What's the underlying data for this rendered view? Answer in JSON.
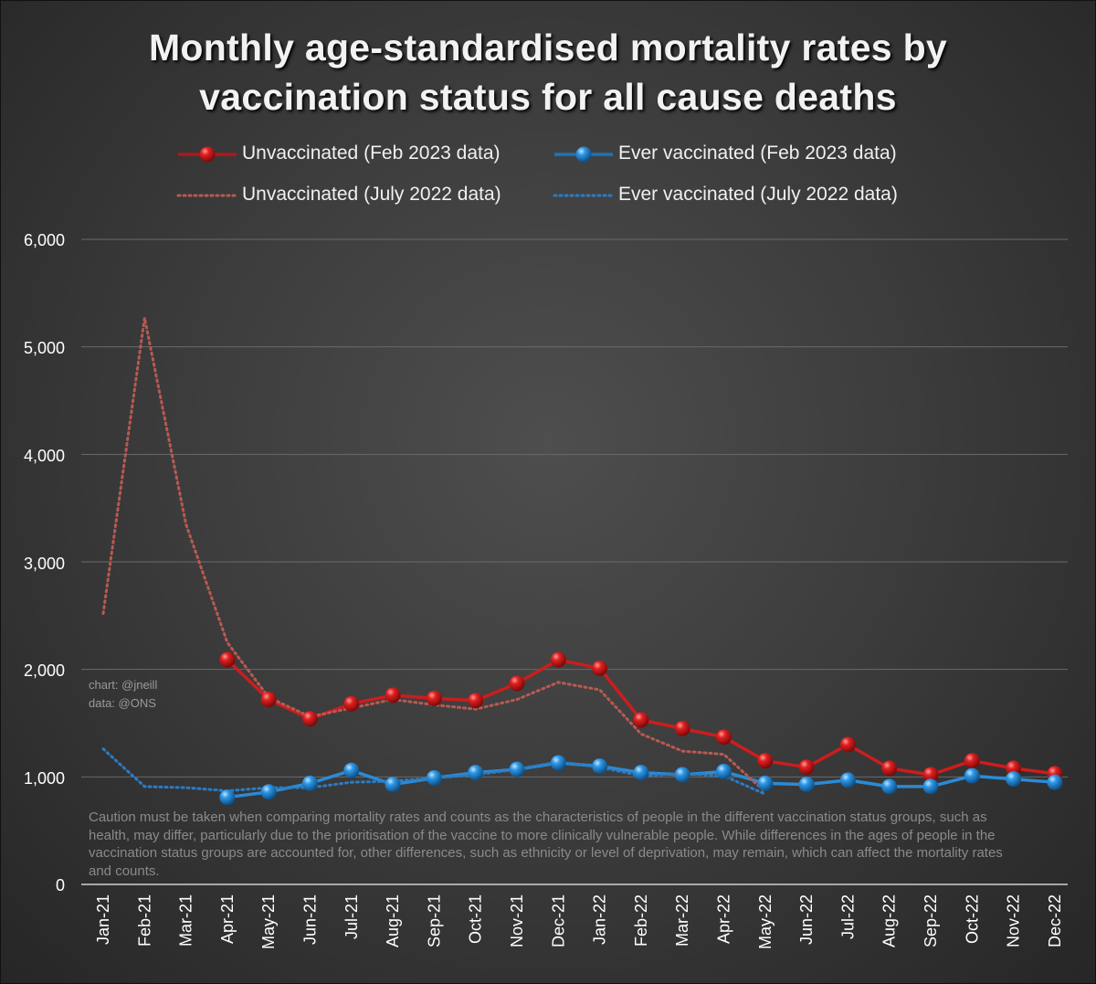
{
  "colors": {
    "unvaccinated": "#cc1d1d",
    "unvaccinated_old": "#b85a52",
    "vaccinated": "#2a8bd6",
    "vaccinated_old": "#2b7cc4",
    "grid": "#6a6a6a"
  },
  "legend": {
    "unvax_new": "Unvaccinated (Feb 2023 data)",
    "vax_new": "Ever vaccinated (Feb 2023 data)",
    "unvax_old": "Unvaccinated (July 2022 data)",
    "vax_old": "Ever vaccinated (July 2022 data)"
  },
  "credit": {
    "chart": "chart: @jneill",
    "data": "data: @ONS"
  },
  "caution": "Caution must be taken when comparing mortality rates and counts as the characteristics of people in the different vaccination status groups, such as health, may differ, particularly due to the prioritisation of the vaccine to more clinically vulnerable people. While differences in the ages of people in the vaccination status groups are accounted for, other differences, such as ethnicity or level of deprivation, may remain, which can affect the mortality rates and counts.",
  "chart_data": {
    "type": "line",
    "title": [
      "Monthly age-standardised mortality rates by",
      "vaccination status for all cause deaths"
    ],
    "categories": [
      "Jan-21",
      "Feb-21",
      "Mar-21",
      "Apr-21",
      "May-21",
      "Jun-21",
      "Jul-21",
      "Aug-21",
      "Sep-21",
      "Oct-21",
      "Nov-21",
      "Dec-21",
      "Jan-22",
      "Feb-22",
      "Mar-22",
      "Apr-22",
      "May-22",
      "Jun-22",
      "Jul-22",
      "Aug-22",
      "Sep-22",
      "Oct-22",
      "Nov-22",
      "Dec-22"
    ],
    "y_ticks": [
      "0",
      "1,000",
      "2,000",
      "3,000",
      "4,000",
      "5,000",
      "6,000"
    ],
    "ylim": [
      0,
      6000
    ],
    "grid": true,
    "legend_position": "top",
    "series": [
      {
        "name": "Unvaccinated (Feb 2023 data)",
        "style": "solid-marker",
        "color_key": "unvaccinated",
        "values": [
          null,
          null,
          null,
          2090,
          1720,
          1540,
          1680,
          1760,
          1730,
          1710,
          1870,
          2090,
          2010,
          1530,
          1450,
          1370,
          1150,
          1090,
          1300,
          1080,
          1020,
          1150,
          1080,
          1030
        ]
      },
      {
        "name": "Ever vaccinated (Feb 2023 data)",
        "style": "solid-marker",
        "color_key": "vaccinated",
        "values": [
          null,
          null,
          null,
          810,
          860,
          940,
          1060,
          930,
          990,
          1040,
          1070,
          1130,
          1100,
          1040,
          1020,
          1050,
          940,
          930,
          970,
          910,
          910,
          1010,
          980,
          950
        ]
      },
      {
        "name": "Unvaccinated (July 2022 data)",
        "style": "dotted",
        "color_key": "unvaccinated_old",
        "values": [
          2520,
          5270,
          3350,
          2250,
          1740,
          1560,
          1640,
          1720,
          1670,
          1630,
          1720,
          1880,
          1810,
          1400,
          1240,
          1210,
          860,
          null,
          null,
          null,
          null,
          null,
          null,
          null
        ]
      },
      {
        "name": "Ever vaccinated (July 2022 data)",
        "style": "dotted",
        "color_key": "vaccinated_old",
        "values": [
          1260,
          910,
          900,
          870,
          900,
          900,
          950,
          960,
          990,
          1020,
          1070,
          1140,
          1090,
          1010,
          1030,
          1010,
          840,
          null,
          null,
          null,
          null,
          null,
          null,
          null
        ]
      }
    ]
  }
}
